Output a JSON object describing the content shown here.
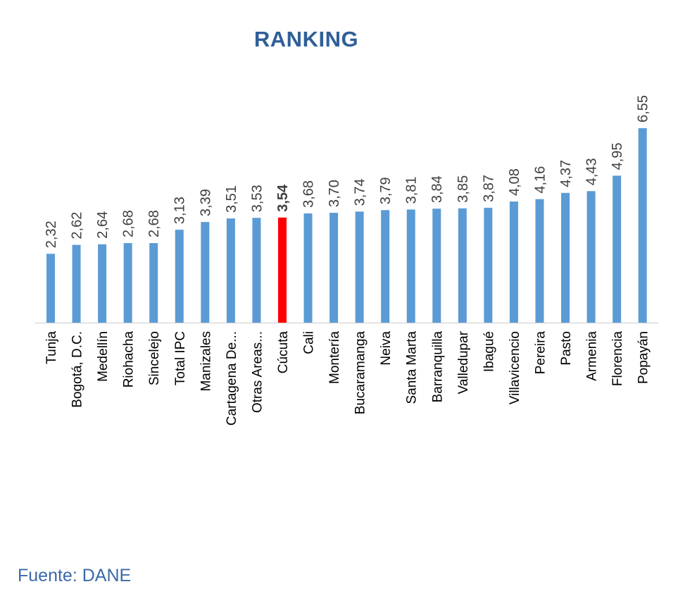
{
  "chart_data": {
    "type": "bar",
    "title": "RANKING",
    "categories": [
      "Tunja",
      "Bogotá, D.C.",
      "Medellín",
      "Riohacha",
      "Sincelejo",
      "Total IPC",
      "Manizales",
      "Cartagena De...",
      "Otras Areas...",
      "Cúcuta",
      "Cali",
      "Montería",
      "Bucaramanga",
      "Neiva",
      "Santa Marta",
      "Barranquilla",
      "Valledupar",
      "Ibagué",
      "Villavicencio",
      "Pereira",
      "Pasto",
      "Armenia",
      "Florencia",
      "Popayán"
    ],
    "values": [
      2.32,
      2.62,
      2.64,
      2.68,
      2.68,
      3.13,
      3.39,
      3.51,
      3.53,
      3.54,
      3.68,
      3.7,
      3.74,
      3.79,
      3.81,
      3.84,
      3.85,
      3.87,
      4.08,
      4.16,
      4.37,
      4.43,
      4.95,
      6.55
    ],
    "value_labels": [
      "2,32",
      "2,62",
      "2,64",
      "2,68",
      "2,68",
      "3,13",
      "3,39",
      "3,51",
      "3,53",
      "3,54",
      "3,68",
      "3,70",
      "3,74",
      "3,79",
      "3,81",
      "3,84",
      "3,85",
      "3,87",
      "4,08",
      "4,16",
      "4,37",
      "4,43",
      "4,95",
      "6,55"
    ],
    "highlight": "Cúcuta",
    "ylim": [
      0,
      6.55
    ],
    "xlabel": "",
    "ylabel": "",
    "grid": false,
    "legend": "none",
    "colors": {
      "bar": "#5b9bd5",
      "highlight": "#ff0000",
      "axis": "#d9d9d9",
      "text": "#000000",
      "value_text": "#404040"
    }
  },
  "footer": {
    "source": "Fuente: DANE"
  }
}
